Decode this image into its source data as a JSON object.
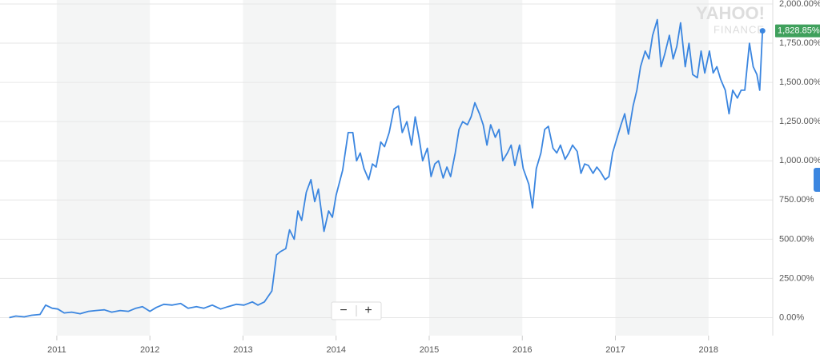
{
  "chart_data": {
    "type": "line",
    "watermark": [
      "YAHOO!",
      "FINANCE"
    ],
    "controls": [
      "−",
      "+"
    ],
    "current_label": "1,828.85%",
    "color": "#3b86e0",
    "x": [
      2010.49,
      2010.56,
      2010.65,
      2010.73,
      2010.82,
      2010.88,
      2010.95,
      2011.01,
      2011.08,
      2011.16,
      2011.25,
      2011.34,
      2011.42,
      2011.51,
      2011.59,
      2011.68,
      2011.77,
      2011.85,
      2011.92,
      2012.0,
      2012.07,
      2012.15,
      2012.24,
      2012.33,
      2012.41,
      2012.5,
      2012.58,
      2012.67,
      2012.76,
      2012.84,
      2012.93,
      2013.01,
      2013.1,
      2013.16,
      2013.23,
      2013.31,
      2013.36,
      2013.4,
      2013.46,
      2013.5,
      2013.55,
      2013.59,
      2013.63,
      2013.68,
      2013.73,
      2013.77,
      2013.81,
      2013.87,
      2013.92,
      2013.96,
      2014.0,
      2014.07,
      2014.13,
      2014.18,
      2014.22,
      2014.26,
      2014.3,
      2014.35,
      2014.39,
      2014.43,
      2014.48,
      2014.52,
      2014.57,
      2014.62,
      2014.67,
      2014.71,
      2014.76,
      2014.81,
      2014.85,
      2014.89,
      2014.93,
      2014.98,
      2015.02,
      2015.06,
      2015.1,
      2015.15,
      2015.19,
      2015.23,
      2015.28,
      2015.32,
      2015.36,
      2015.41,
      2015.45,
      2015.49,
      2015.54,
      2015.58,
      2015.62,
      2015.66,
      2015.71,
      2015.75,
      2015.79,
      2015.84,
      2015.88,
      2015.92,
      2015.97,
      2016.01,
      2016.07,
      2016.11,
      2016.15,
      2016.2,
      2016.24,
      2016.28,
      2016.33,
      2016.37,
      2016.41,
      2016.46,
      2016.5,
      2016.54,
      2016.59,
      2016.63,
      2016.67,
      2016.71,
      2016.76,
      2016.8,
      2016.84,
      2016.89,
      2016.93,
      2016.97,
      2017.02,
      2017.06,
      2017.1,
      2017.14,
      2017.19,
      2017.23,
      2017.27,
      2017.32,
      2017.36,
      2017.4,
      2017.45,
      2017.49,
      2017.53,
      2017.58,
      2017.62,
      2017.66,
      2017.7,
      2017.75,
      2017.79,
      2017.83,
      2017.88,
      2017.92,
      2017.96,
      2018.01,
      2018.05,
      2018.09,
      2018.13,
      2018.18,
      2018.22,
      2018.26,
      2018.31,
      2018.35,
      2018.39,
      2018.44,
      2018.48,
      2018.52,
      2018.55,
      2018.58
    ],
    "values": [
      0,
      10,
      5,
      15,
      20,
      80,
      60,
      55,
      30,
      35,
      25,
      40,
      45,
      50,
      35,
      45,
      40,
      60,
      70,
      40,
      65,
      85,
      80,
      90,
      60,
      70,
      60,
      80,
      55,
      70,
      85,
      80,
      100,
      80,
      100,
      170,
      400,
      420,
      440,
      560,
      500,
      680,
      620,
      800,
      880,
      740,
      820,
      550,
      680,
      640,
      780,
      940,
      1180,
      1180,
      1000,
      1050,
      950,
      880,
      980,
      960,
      1120,
      1090,
      1180,
      1330,
      1350,
      1180,
      1250,
      1100,
      1280,
      1150,
      1000,
      1080,
      900,
      980,
      1000,
      890,
      960,
      900,
      1050,
      1200,
      1250,
      1230,
      1280,
      1370,
      1300,
      1230,
      1100,
      1230,
      1150,
      1200,
      1000,
      1050,
      1100,
      970,
      1100,
      950,
      850,
      700,
      950,
      1050,
      1200,
      1220,
      1080,
      1050,
      1100,
      1010,
      1050,
      1100,
      1060,
      920,
      980,
      970,
      920,
      960,
      930,
      880,
      900,
      1050,
      1150,
      1230,
      1300,
      1170,
      1350,
      1450,
      1600,
      1700,
      1650,
      1800,
      1900,
      1600,
      1680,
      1800,
      1650,
      1730,
      1880,
      1600,
      1750,
      1550,
      1530,
      1700,
      1560,
      1700,
      1560,
      1600,
      1520,
      1450,
      1300,
      1450,
      1400,
      1450,
      1450,
      1750,
      1600,
      1550,
      1450,
      1828.85
    ],
    "xlim": [
      2010.39,
      2018.69
    ],
    "xticks": [
      2011,
      2012,
      2013,
      2014,
      2015,
      2016,
      2017,
      2018
    ],
    "ylim": [
      -18,
      2000
    ],
    "yticks": [
      {
        "value": 0,
        "label": "0.00%"
      },
      {
        "value": 250,
        "label": "250.00%"
      },
      {
        "value": 500,
        "label": "500.00%"
      },
      {
        "value": 750,
        "label": "750.00%"
      },
      {
        "value": 1000,
        "label": "1,000.00%"
      },
      {
        "value": 1250,
        "label": "1,250.00%"
      },
      {
        "value": 1500,
        "label": "1,500.00%"
      },
      {
        "value": 1750,
        "label": "1,750.00%"
      },
      {
        "value": 2000,
        "label": "2,000.00%"
      }
    ],
    "grid": true,
    "alternate_bands": true
  }
}
